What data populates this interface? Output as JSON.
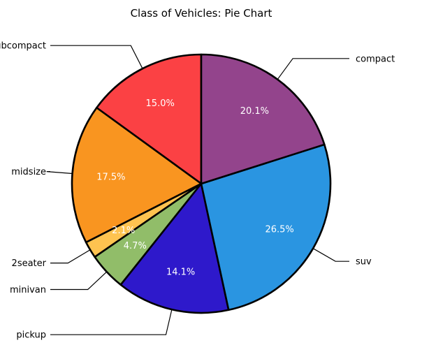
{
  "chart_data": {
    "type": "pie",
    "title": "Class of Vehicles: Pie Chart",
    "start_angle_deg": 90,
    "direction": "counterclockwise",
    "slices": [
      {
        "label": "subcompact",
        "value": 15.0,
        "pct_text": "15.0%",
        "color": "#fb4144"
      },
      {
        "label": "midsize",
        "value": 17.5,
        "pct_text": "17.5%",
        "color": "#f99520"
      },
      {
        "label": "2seater",
        "value": 2.1,
        "pct_text": "2.1%",
        "color": "#fec350"
      },
      {
        "label": "minivan",
        "value": 4.7,
        "pct_text": "4.7%",
        "color": "#91bd69"
      },
      {
        "label": "pickup",
        "value": 14.1,
        "pct_text": "14.1%",
        "color": "#2e19cb"
      },
      {
        "label": "suv",
        "value": 26.5,
        "pct_text": "26.5%",
        "color": "#2a95e1"
      },
      {
        "label": "compact",
        "value": 20.1,
        "pct_text": "20.1%",
        "color": "#93448c"
      }
    ]
  }
}
